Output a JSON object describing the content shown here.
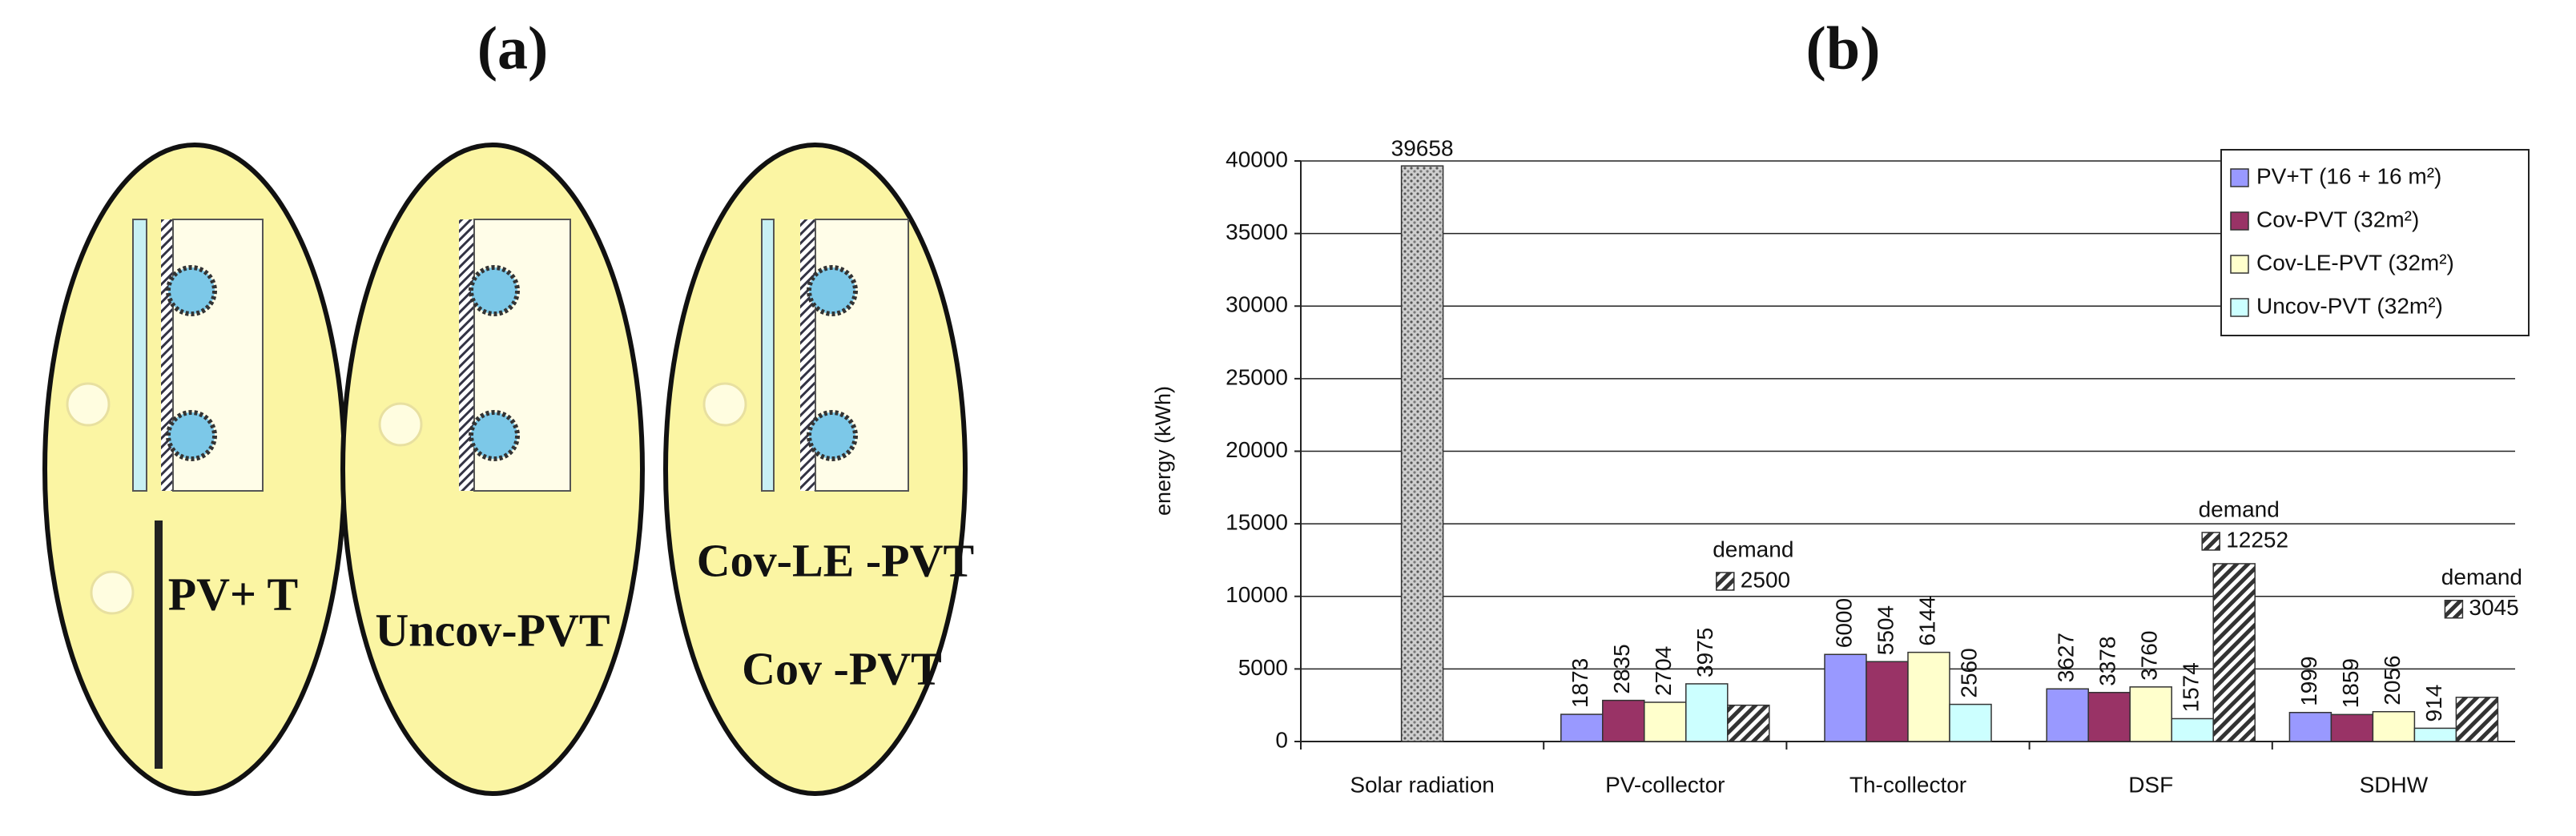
{
  "panel_a": {
    "label": "(a)",
    "diagrams": [
      [
        "PV+ T"
      ],
      [
        "Uncov-PVT"
      ],
      [
        "Cov-LE -PVT",
        "Cov -PVT"
      ]
    ]
  },
  "chart_data": {
    "type": "bar",
    "label": "(b)",
    "ylabel": "energy (kWh)",
    "categories": [
      "Solar radiation",
      "PV-collector",
      "Th-collector",
      "DSF",
      "SDHW"
    ],
    "series": [
      {
        "name": "PV+T (16 + 16 m²)",
        "color": "#9999ff",
        "values": [
          null,
          1873,
          6000,
          3627,
          1999
        ]
      },
      {
        "name": "Cov-PVT (32m²)",
        "color": "#993366",
        "values": [
          null,
          2835,
          5504,
          3378,
          1859
        ]
      },
      {
        "name": "Cov-LE-PVT (32m²)",
        "color": "#ffffcc",
        "values": [
          null,
          2704,
          6144,
          3760,
          2056
        ]
      },
      {
        "name": "Uncov-PVT (32m²)",
        "color": "#ccffff",
        "values": [
          null,
          3975,
          2560,
          1574,
          914
        ]
      }
    ],
    "solar": {
      "values": [
        39658,
        null,
        null,
        null,
        null
      ]
    },
    "demand": {
      "label": "demand",
      "values": [
        null,
        2500,
        null,
        12252,
        3045
      ]
    },
    "ylim": [
      0,
      40000
    ],
    "yticks": [
      0,
      5000,
      10000,
      15000,
      20000,
      25000,
      30000,
      35000,
      40000
    ],
    "grid": true,
    "legend": "upper right"
  }
}
